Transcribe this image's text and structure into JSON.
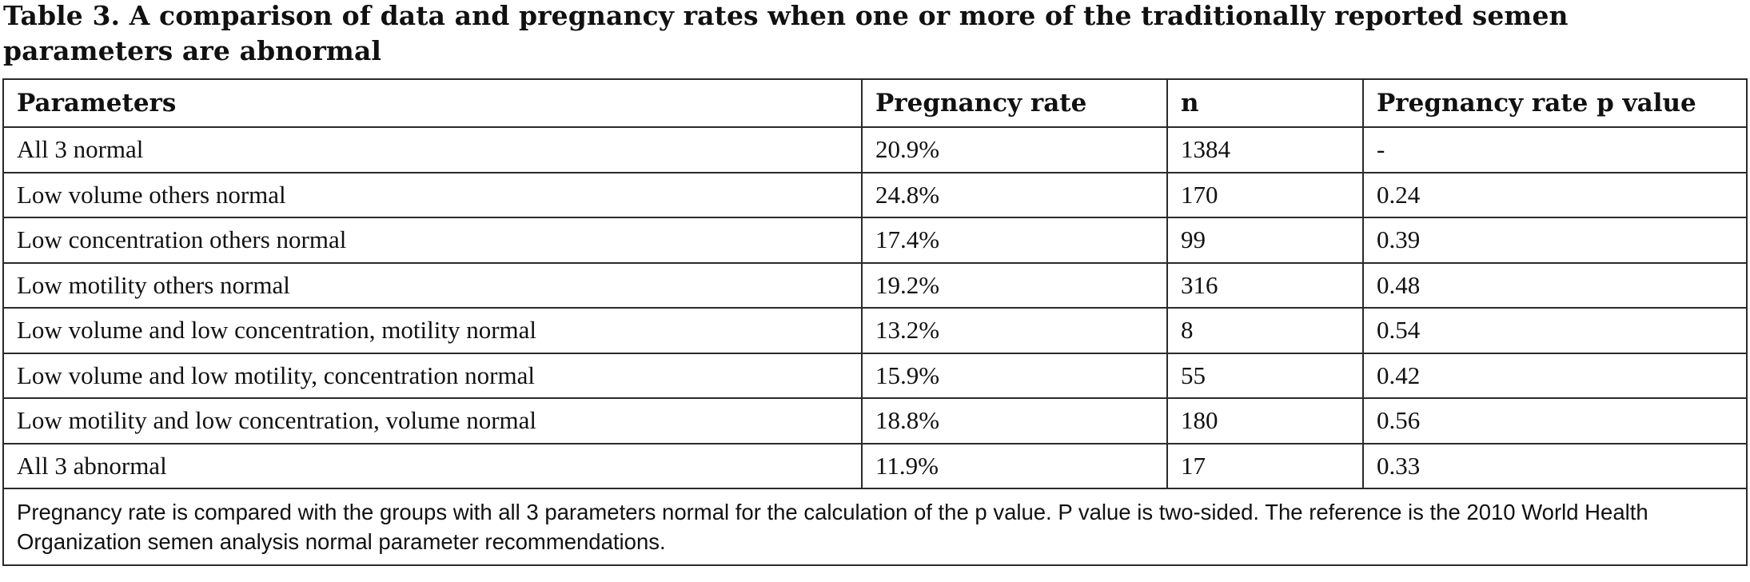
{
  "table": {
    "title": "Table 3. A comparison of data and pregnancy rates when one or more of the traditionally reported semen parameters are abnormal",
    "headers": [
      "Parameters",
      "Pregnancy rate",
      "n",
      "Pregnancy rate p value"
    ],
    "rows": [
      [
        "All 3 normal",
        "20.9%",
        "1384",
        "-"
      ],
      [
        "Low volume others normal",
        "24.8%",
        "170",
        "0.24"
      ],
      [
        "Low concentration others normal",
        "17.4%",
        "99",
        "0.39"
      ],
      [
        "Low motility others normal",
        "19.2%",
        "316",
        "0.48"
      ],
      [
        "Low volume and low concentration, motility normal",
        "13.2%",
        "8",
        "0.54"
      ],
      [
        "Low volume and low motility, concentration normal",
        "15.9%",
        "55",
        "0.42"
      ],
      [
        "Low motility and low concentration, volume normal",
        "18.8%",
        "180",
        "0.56"
      ],
      [
        "All 3 abnormal",
        "11.9%",
        "17",
        "0.33"
      ]
    ],
    "footnote": "Pregnancy rate is compared with the groups with all 3 parameters normal for the calculation of the p value. P value is two-sided. The reference is the 2010 World Health Organization semen analysis normal parameter recommendations."
  },
  "chart_data": {
    "type": "table",
    "title": "Table 3. A comparison of data and pregnancy rates when one or more of the traditionally reported semen parameters are abnormal",
    "columns": [
      "Parameters",
      "Pregnancy rate",
      "n",
      "Pregnancy rate p value"
    ],
    "rows": [
      [
        "All 3 normal",
        "20.9%",
        "1384",
        "-"
      ],
      [
        "Low volume others normal",
        "24.8%",
        "170",
        "0.24"
      ],
      [
        "Low concentration others normal",
        "17.4%",
        "99",
        "0.39"
      ],
      [
        "Low motility others normal",
        "19.2%",
        "316",
        "0.48"
      ],
      [
        "Low volume and low concentration, motility normal",
        "13.2%",
        "8",
        "0.54"
      ],
      [
        "Low volume and low motility, concentration normal",
        "15.9%",
        "55",
        "0.42"
      ],
      [
        "Low motility and low concentration, volume normal",
        "18.8%",
        "180",
        "0.56"
      ],
      [
        "All 3 abnormal",
        "11.9%",
        "17",
        "0.33"
      ]
    ]
  }
}
